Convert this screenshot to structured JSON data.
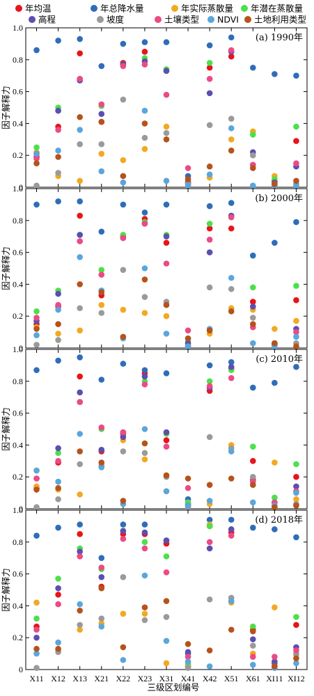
{
  "legend": {
    "items": [
      {
        "label": "年均温",
        "color": "#e8141b"
      },
      {
        "label": "年总降水量",
        "color": "#2f6db8"
      },
      {
        "label": "年实际蒸散量",
        "color": "#f2a922"
      },
      {
        "label": "年潜在蒸散量",
        "color": "#4de04a"
      },
      {
        "label": "高程",
        "color": "#5b4fb0"
      },
      {
        "label": "坡度",
        "color": "#9a9a9a"
      },
      {
        "label": "土壤类型",
        "color": "#ec4a86"
      },
      {
        "label": "NDVI",
        "color": "#5aa6dc"
      },
      {
        "label": "土地利用类型",
        "color": "#b5531c"
      }
    ]
  },
  "chart_data": {
    "type": "scatter",
    "xlabel": "三级区划编号",
    "ylabel": "因子解释力",
    "categories": [
      "X11",
      "X12",
      "X13",
      "X21",
      "X22",
      "X23",
      "X31",
      "X41",
      "X42",
      "X51",
      "X61",
      "XI11",
      "XI12"
    ],
    "yticks": [
      "0",
      "0.2",
      "0.4",
      "0.6",
      "0.8",
      "1.0"
    ],
    "ylim": [
      0,
      1.0
    ],
    "panels": [
      {
        "label": "(a) 1990年",
        "series": [
          {
            "name": "年均温",
            "values": [
              0.19,
              0.38,
              0.84,
              0.41,
              0.78,
              0.85,
              0.73,
              0.02,
              0.75,
              0.82,
              0.14,
              0.04,
              0.29
            ]
          },
          {
            "name": "年总降水量",
            "values": [
              0.86,
              0.92,
              0.93,
              0.76,
              0.9,
              0.91,
              0.91,
              0.07,
              0.89,
              0.94,
              0.75,
              0.71,
              0.7
            ]
          },
          {
            "name": "年实际蒸散量",
            "values": [
              0.22,
              0.07,
              0.04,
              0.21,
              0.17,
              0.24,
              0.38,
              0.03,
              0.06,
              0.3,
              0.35,
              0.07,
              0.02
            ]
          },
          {
            "name": "年潜在蒸散量",
            "values": [
              0.25,
              0.5,
              0.68,
              0.51,
              0.77,
              0.81,
              0.74,
              0.04,
              0.78,
              0.85,
              0.33,
              0.05,
              0.38
            ]
          },
          {
            "name": "高程",
            "values": [
              0.21,
              0.48,
              0.67,
              0.46,
              0.77,
              0.79,
              0.73,
              0.03,
              0.59,
              0.85,
              0.22,
              0.03,
              0.13
            ]
          },
          {
            "name": "坡度",
            "values": [
              0.01,
              0.09,
              0.27,
              0.27,
              0.55,
              0.31,
              0.34,
              0.02,
              0.39,
              0.43,
              0.2,
              0.02,
              0.02
            ]
          },
          {
            "name": "土壤类型",
            "values": [
              0.18,
              0.36,
              0.68,
              0.52,
              0.76,
              0.77,
              0.58,
              0.12,
              0.68,
              0.86,
              0.14,
              0.01,
              0.15
            ]
          },
          {
            "name": "NDVI",
            "values": [
              0.21,
              0.23,
              0.36,
              0.1,
              0.03,
              0.48,
              0.04,
              0.01,
              0.08,
              0.37,
              0.01,
              0.01,
              0.01
            ]
          },
          {
            "name": "土地利用类型",
            "values": [
              0.15,
              0.19,
              0.44,
              0.41,
              0.07,
              0.4,
              0.3,
              0.05,
              0.13,
              0.23,
              0.12,
              0.02,
              0.04
            ]
          }
        ]
      },
      {
        "label": "(b) 2000年",
        "series": [
          {
            "name": "年均温",
            "values": [
              0.15,
              0.26,
              0.83,
              0.33,
              0.7,
              0.81,
              0.66,
              0.01,
              0.75,
              0.75,
              0.29,
              0.02,
              0.3
            ]
          },
          {
            "name": "年总降水量",
            "values": [
              0.9,
              0.92,
              0.92,
              0.73,
              0.9,
              0.85,
              0.9,
              0.06,
              0.89,
              0.91,
              0.58,
              0.66,
              0.79
            ]
          },
          {
            "name": "年实际蒸散量",
            "values": [
              0.13,
              0.09,
              0.11,
              0.27,
              0.24,
              0.22,
              0.2,
              0.02,
              0.09,
              0.25,
              0.24,
              0.12,
              0.17
            ]
          },
          {
            "name": "年潜在蒸散量",
            "values": [
              0.23,
              0.36,
              0.71,
              0.49,
              0.71,
              0.79,
              0.71,
              0.04,
              0.78,
              0.83,
              0.38,
              0.02,
              0.39
            ]
          },
          {
            "name": "高程",
            "values": [
              0.17,
              0.34,
              0.71,
              0.36,
              0.69,
              0.78,
              0.7,
              0.03,
              0.6,
              0.83,
              0.26,
              0.03,
              0.12
            ]
          },
          {
            "name": "坡度",
            "values": [
              0.02,
              0.05,
              0.25,
              0.22,
              0.49,
              0.32,
              0.29,
              0.01,
              0.38,
              0.37,
              0.19,
              0.03,
              0.03
            ]
          },
          {
            "name": "土壤类型",
            "values": [
              0.19,
              0.27,
              0.67,
              0.46,
              0.69,
              0.78,
              0.53,
              0.11,
              0.68,
              0.82,
              0.13,
              0.02,
              0.1
            ]
          },
          {
            "name": "NDVI",
            "values": [
              0.08,
              0.24,
              0.57,
              0.36,
              0.06,
              0.5,
              0.09,
              0.01,
              0.12,
              0.44,
              0.03,
              0.01,
              0.07
            ]
          },
          {
            "name": "土地利用类型",
            "values": [
              0.12,
              0.15,
              0.4,
              0.35,
              0.07,
              0.43,
              0.27,
              0.06,
              0.11,
              0.23,
              0.15,
              0.03,
              0.01
            ]
          }
        ]
      },
      {
        "label": "(c) 2010年",
        "series": [
          {
            "name": "年均温",
            "values": [
              0.13,
              0.29,
              0.83,
              0.36,
              0.47,
              0.85,
              0.43,
              0.03,
              0.74,
              0.88,
              0.3,
              0.04,
              0.2
            ]
          },
          {
            "name": "年总降水量",
            "values": [
              0.87,
              0.93,
              0.95,
              0.81,
              0.91,
              0.87,
              0.85,
              0.06,
              0.9,
              0.92,
              0.76,
              0.79,
              0.89
            ]
          },
          {
            "name": "年实际蒸散量",
            "values": [
              0.14,
              0.12,
              0.09,
              0.37,
              0.43,
              0.31,
              0.11,
              0.04,
              0.03,
              0.4,
              0.19,
              0.29,
              0.06
            ]
          },
          {
            "name": "年潜在蒸散量",
            "values": [
              0.24,
              0.35,
              0.67,
              0.5,
              0.48,
              0.8,
              0.47,
              0.04,
              0.8,
              0.87,
              0.39,
              0.07,
              0.28
            ]
          },
          {
            "name": "高程",
            "values": [
              0.19,
              0.38,
              0.73,
              0.37,
              0.45,
              0.83,
              0.48,
              0.02,
              0.76,
              0.89,
              0.18,
              0.04,
              0.14
            ]
          },
          {
            "name": "坡度",
            "values": [
              0.01,
              0.06,
              0.28,
              0.27,
              0.36,
              0.35,
              0.2,
              0.01,
              0.45,
              0.38,
              0.2,
              0.02,
              0.03
            ]
          },
          {
            "name": "土壤类型",
            "values": [
              0.19,
              0.3,
              0.67,
              0.51,
              0.48,
              0.78,
              0.39,
              0.13,
              0.77,
              0.82,
              0.17,
              0.04,
              0.11
            ]
          },
          {
            "name": "NDVI",
            "values": [
              0.24,
              0.17,
              0.47,
              0.26,
              0.03,
              0.5,
              0.11,
              0.02,
              0.05,
              0.36,
              0.04,
              0.02,
              0.1
            ]
          },
          {
            "name": "土地利用类型",
            "values": [
              0.12,
              0.13,
              0.36,
              0.29,
              0.05,
              0.41,
              0.21,
              0.19,
              0.15,
              0.19,
              0.15,
              0.01,
              0.02
            ]
          }
        ]
      },
      {
        "label": "(d) 2018年",
        "series": [
          {
            "name": "年均温",
            "values": [
              0.27,
              0.47,
              0.85,
              0.52,
              0.85,
              0.85,
              0.79,
              0.02,
              0.9,
              0.86,
              0.25,
              0.04,
              0.28
            ]
          },
          {
            "name": "年总降水量",
            "values": [
              0.84,
              0.89,
              0.91,
              0.7,
              0.91,
              0.91,
              0.81,
              0.1,
              0.94,
              0.94,
              0.89,
              0.88,
              0.83
            ]
          },
          {
            "name": "年实际蒸散量",
            "values": [
              0.42,
              0.12,
              0.25,
              0.29,
              0.35,
              0.35,
              0.04,
              0.03,
              0.91,
              0.42,
              0.1,
              0.39,
              0.09
            ]
          },
          {
            "name": "年潜在蒸散量",
            "values": [
              0.32,
              0.57,
              0.76,
              0.63,
              0.87,
              0.8,
              0.71,
              0.04,
              0.9,
              0.88,
              0.27,
              0.05,
              0.33
            ]
          },
          {
            "name": "高程",
            "values": [
              0.2,
              0.51,
              0.74,
              0.58,
              0.87,
              0.86,
              0.81,
              0.11,
              0.76,
              0.88,
              0.19,
              0.05,
              0.14
            ]
          },
          {
            "name": "坡度",
            "values": [
              0.01,
              0.11,
              0.28,
              0.32,
              0.58,
              0.31,
              0.33,
              0.01,
              0.44,
              0.45,
              0.15,
              0.02,
              0.1
            ]
          },
          {
            "name": "土壤类型",
            "values": [
              0.25,
              0.41,
              0.71,
              0.64,
              0.82,
              0.76,
              0.61,
              0.08,
              0.8,
              0.84,
              0.08,
              0.08,
              0.12
            ]
          },
          {
            "name": "NDVI",
            "values": [
              0.1,
              0.17,
              0.41,
              0.27,
              0.06,
              0.59,
              0.18,
              0.05,
              0.02,
              0.43,
              0.03,
              0.01,
              0.04
            ]
          },
          {
            "name": "土地利用类型",
            "values": [
              0.13,
              0.13,
              0.37,
              0.51,
              0.14,
              0.39,
              0.43,
              0.16,
              0.12,
              0.25,
              0.24,
              0.02,
              0.07
            ]
          }
        ]
      }
    ]
  }
}
